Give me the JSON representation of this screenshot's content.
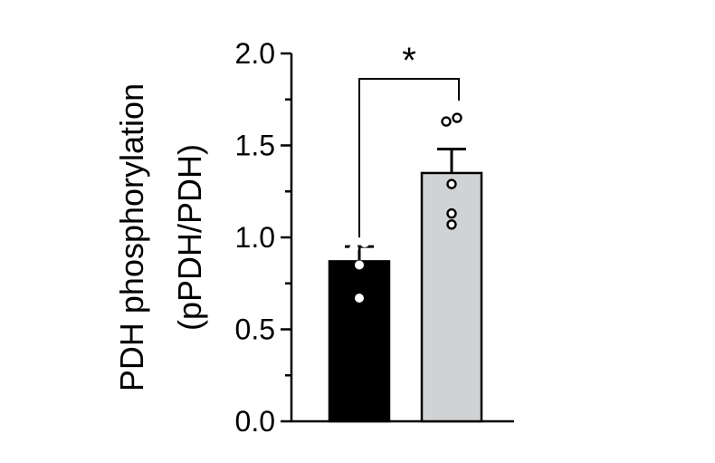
{
  "chart_data": {
    "type": "bar",
    "ylabel_line1": "PDH phosphorylation",
    "ylabel_line2": "(pPDH/PDH)",
    "ylim": [
      0,
      2.0
    ],
    "major_ticks": [
      0.0,
      0.5,
      1.0,
      1.5,
      2.0
    ],
    "tick_labels": [
      "0.0",
      "0.5",
      "1.0",
      "1.5",
      "2.0"
    ],
    "minor_tick_step": 0.25,
    "bars": [
      {
        "value": 0.87,
        "sem": 0.08,
        "fill": "#000000",
        "point_style": "filled-white",
        "points": [
          0.67,
          0.85,
          0.94,
          0.97
        ]
      },
      {
        "value": 1.35,
        "sem": 0.13,
        "fill": "#d1d2d4",
        "point_style": "open",
        "points": [
          1.07,
          1.13,
          1.29,
          1.63,
          1.65
        ]
      }
    ],
    "significance": {
      "between": [
        0,
        1
      ],
      "label": "*"
    },
    "grid": false,
    "legend": "none"
  }
}
